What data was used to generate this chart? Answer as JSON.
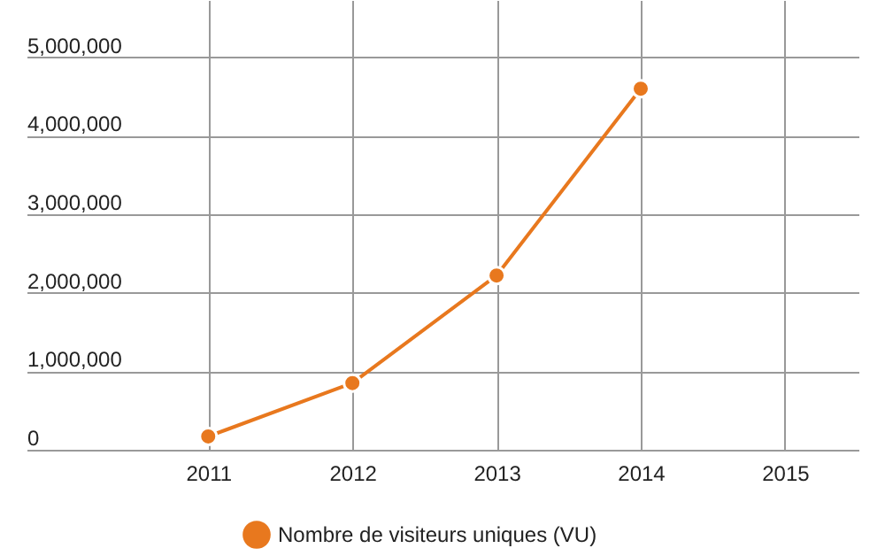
{
  "chart_data": {
    "type": "line",
    "x": [
      2011,
      2012,
      2013,
      2014
    ],
    "series": [
      {
        "name": "Nombre de visiteurs uniques (VU)",
        "color": "#e8781e",
        "values": [
          170000,
          850000,
          2220000,
          4600000
        ]
      }
    ],
    "xlim": [
      2009.74,
      2015.51
    ],
    "xticks": [
      2011,
      2012,
      2013,
      2014,
      2015
    ],
    "ylim": [
      0,
      5730000
    ],
    "yticks": [
      0,
      {
        "value": 1000000,
        "label": "1,000,000"
      },
      {
        "value": 2000000,
        "label": "2,000,000"
      },
      {
        "value": 3000000,
        "label": "3,000,000"
      },
      {
        "value": 4000000,
        "label": "4,000,000"
      },
      {
        "value": 5000000,
        "label": "5,000,000"
      }
    ],
    "grid": true,
    "legend": "bottom",
    "marker": "circle",
    "line_style": "solid"
  }
}
